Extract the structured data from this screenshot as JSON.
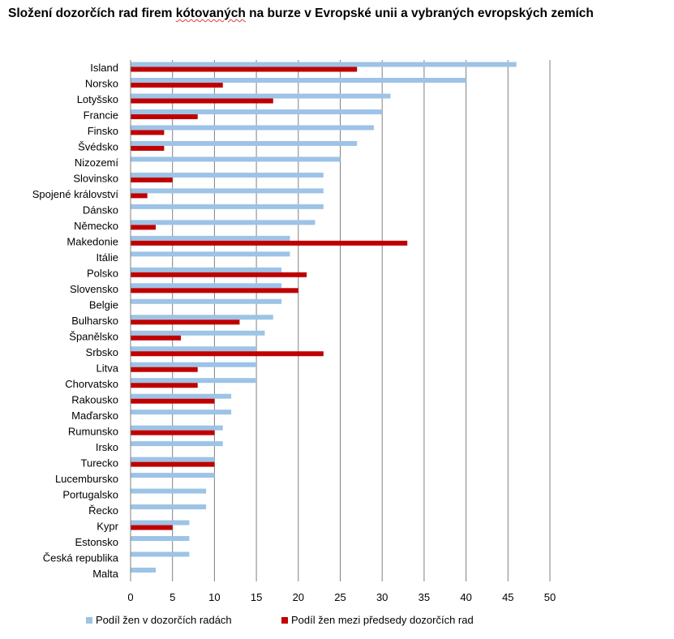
{
  "title": {
    "before": "Složení dozorčích rad firem ",
    "highlight": "kótovaných",
    "after": " na burze v Evropské unii a vybraných evropských zemích"
  },
  "colors": {
    "series1": "#9dc3e6",
    "series2": "#c00000",
    "grid": "#808080"
  },
  "chart_data": {
    "type": "bar",
    "orientation": "horizontal",
    "title": "Složení dozorčích rad firem kótovaných na burze v Evropské unii a vybraných evropských zemích",
    "xlabel": "",
    "ylabel": "",
    "xlim": [
      0,
      50
    ],
    "xticks": [
      "0",
      "5",
      "10",
      "15",
      "20",
      "25",
      "30",
      "35",
      "40",
      "45",
      "50"
    ],
    "grid": "vertical",
    "legend": "bottom",
    "categories": [
      "Island",
      "Norsko",
      "Lotyšsko",
      "Francie",
      "Finsko",
      "Švédsko",
      "Nizozemí",
      "Slovinsko",
      "Spojené království",
      "Dánsko",
      "Německo",
      "Makedonie",
      "Itálie",
      "Polsko",
      "Slovensko",
      "Belgie",
      "Bulharsko",
      "Španělsko",
      "Srbsko",
      "Litva",
      "Chorvatsko",
      "Rakousko",
      "Maďarsko",
      "Rumunsko",
      "Irsko",
      "Turecko",
      "Lucembursko",
      "Portugalsko",
      "Řecko",
      "Kypr",
      "Estonsko",
      "Česká republika",
      "Malta"
    ],
    "series": [
      {
        "name": "Podíl žen v dozorčích radách",
        "values": [
          46,
          40,
          31,
          30,
          29,
          27,
          25,
          23,
          23,
          23,
          22,
          19,
          19,
          18,
          18,
          18,
          17,
          16,
          15,
          15,
          15,
          12,
          12,
          11,
          11,
          10,
          10,
          9,
          9,
          7,
          7,
          7,
          3
        ]
      },
      {
        "name": "Podíl žen mezi předsedy dozorčích rad",
        "values": [
          27,
          11,
          17,
          8,
          4,
          4,
          0,
          5,
          2,
          0,
          3,
          33,
          0,
          21,
          20,
          0,
          13,
          6,
          23,
          8,
          8,
          10,
          0,
          10,
          0,
          10,
          0,
          0,
          0,
          5,
          0,
          0,
          0
        ]
      }
    ]
  }
}
